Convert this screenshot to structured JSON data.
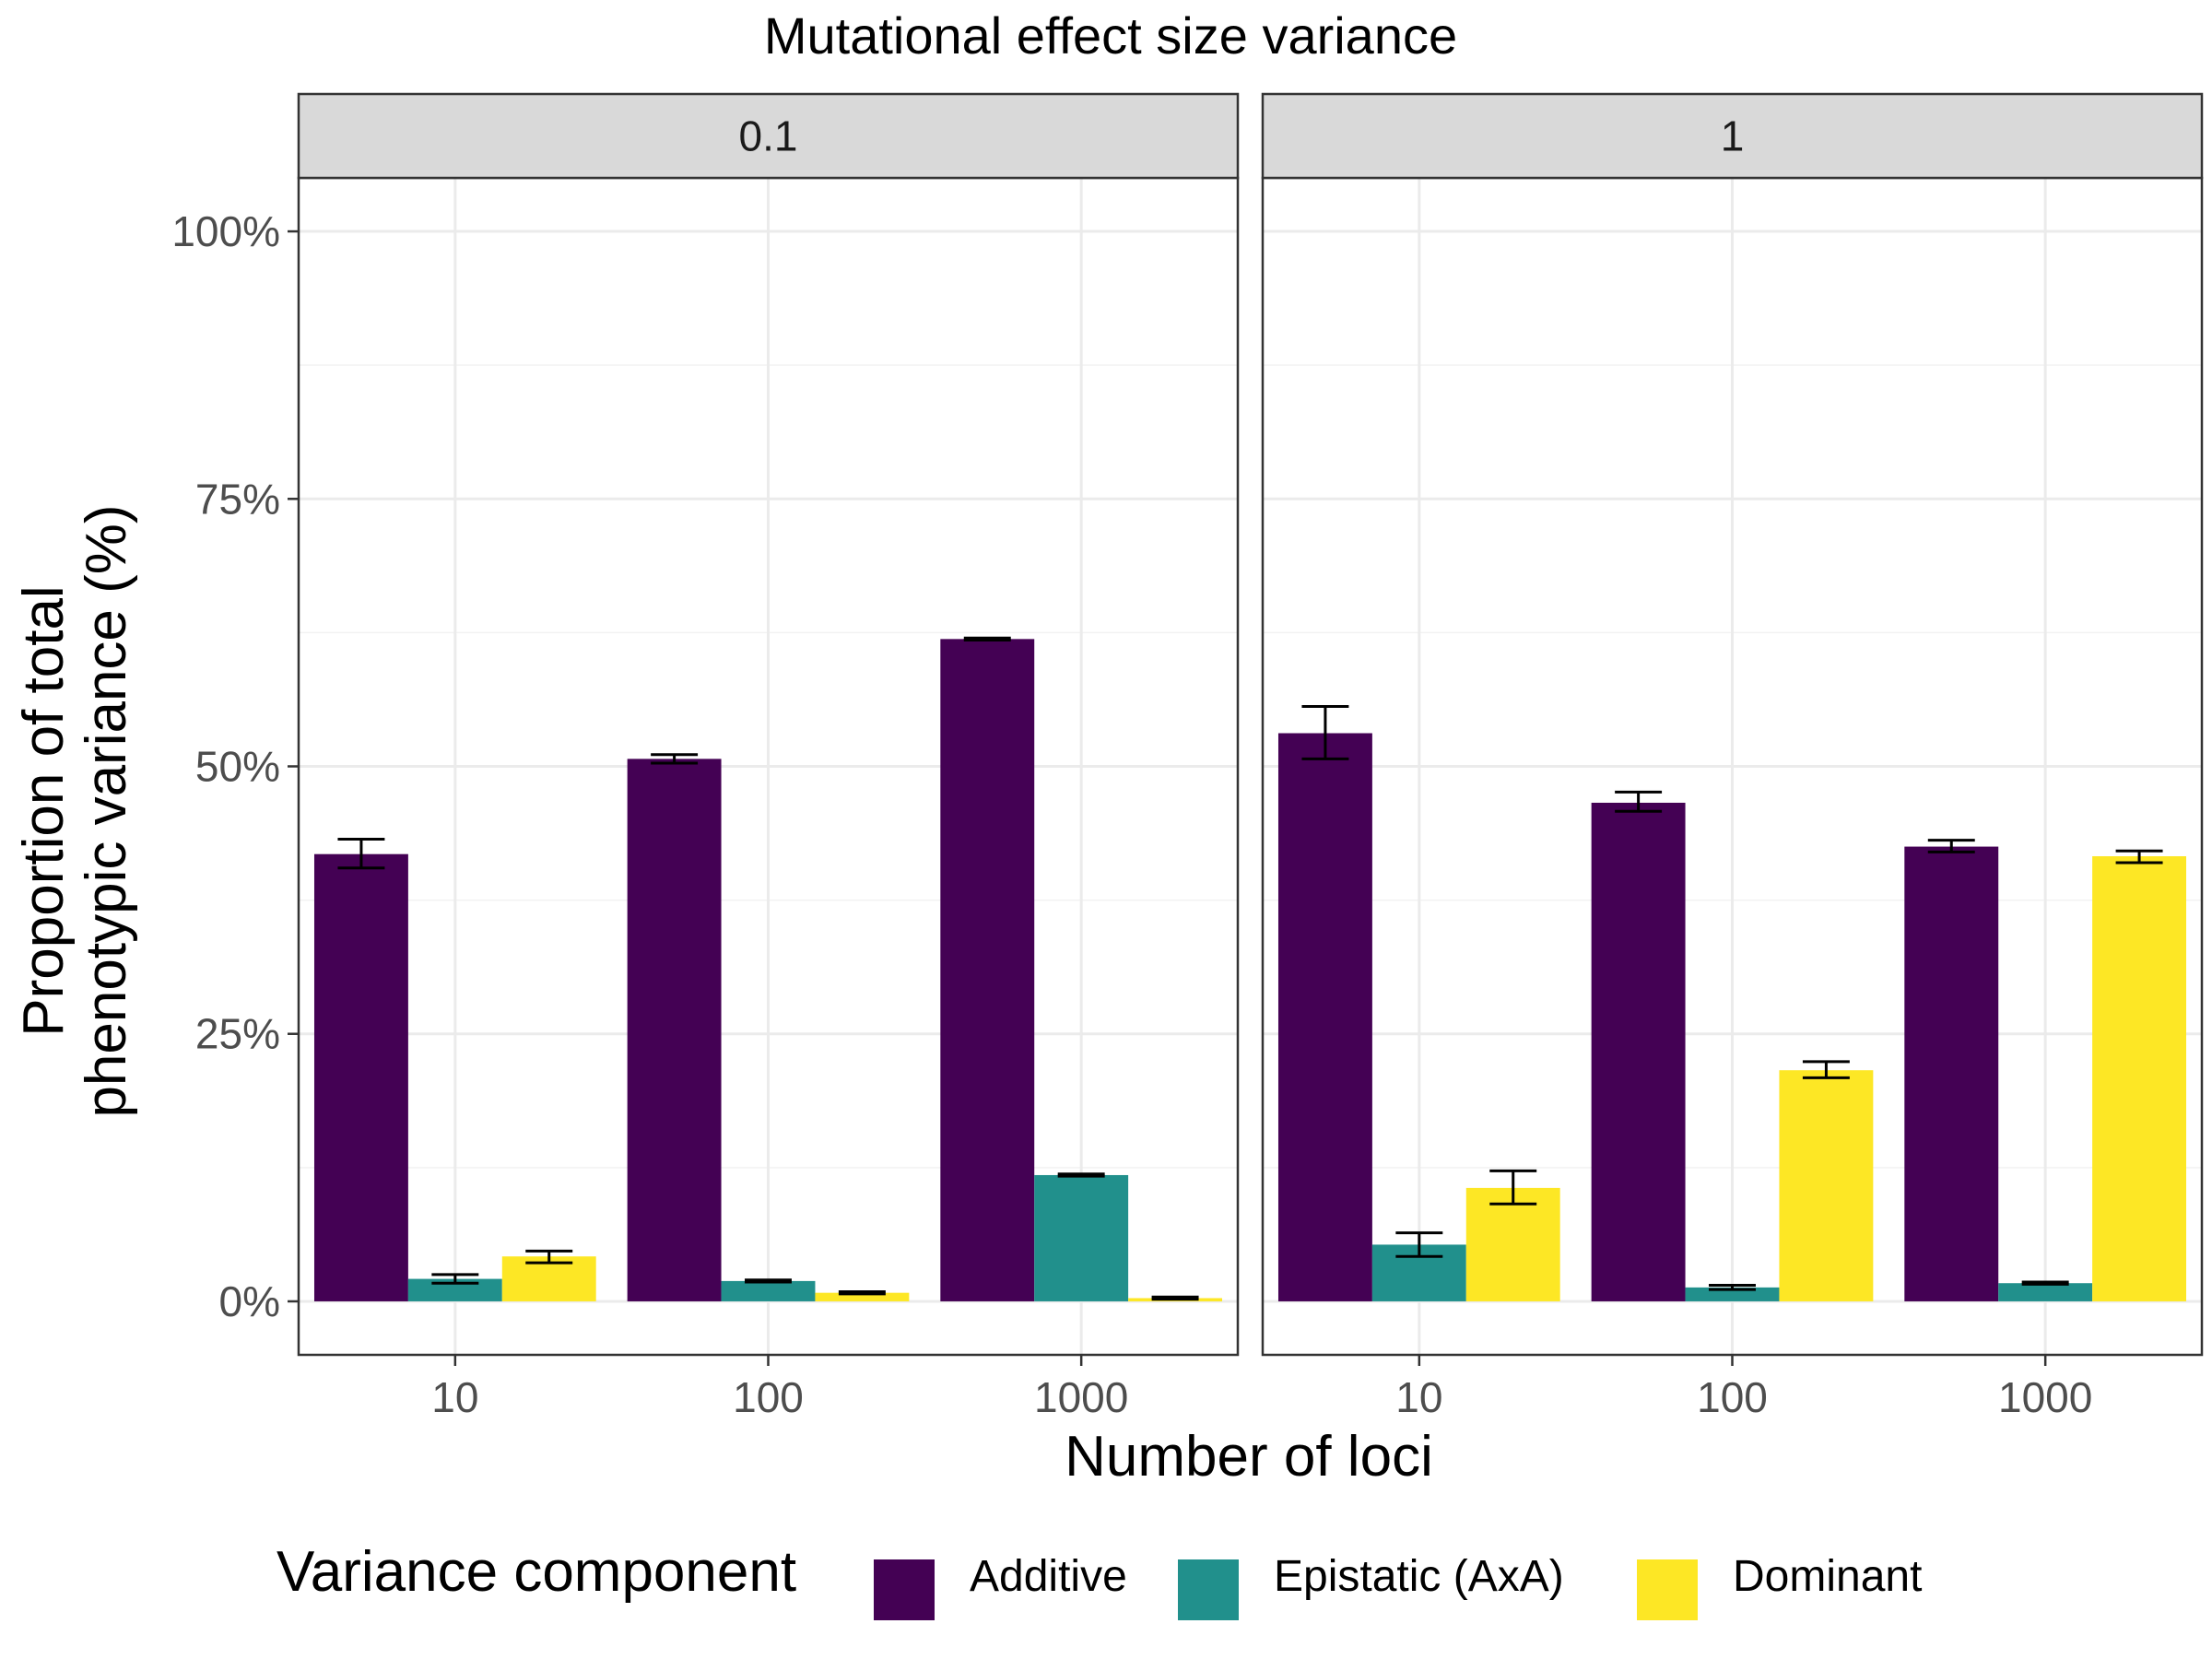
{
  "chart_data": {
    "type": "bar",
    "title": "Mutational effect size variance",
    "xlabel": "Number of loci",
    "ylabel_lines": [
      "Proportion of total",
      "phenotypic variance (%)"
    ],
    "ylim": [
      -0.05,
      1.05
    ],
    "y_ticks": [
      {
        "value": 0,
        "label": "0%"
      },
      {
        "value": 0.25,
        "label": "25%"
      },
      {
        "value": 0.5,
        "label": "50%"
      },
      {
        "value": 0.75,
        "label": "75%"
      },
      {
        "value": 1.0,
        "label": "100%"
      }
    ],
    "y_minor_ticks": [
      0.125,
      0.375,
      0.625,
      0.875
    ],
    "grid": true,
    "categories": [
      "10",
      "100",
      "1000"
    ],
    "legend": {
      "title": "Variance component",
      "position": "bottom",
      "entries": [
        {
          "name": "Additive",
          "color": "#440154"
        },
        {
          "name": "Epistatic (AxA)",
          "color": "#21908C"
        },
        {
          "name": "Dominant",
          "color": "#FDE725"
        }
      ]
    },
    "panels": [
      {
        "strip": "0.1",
        "series": [
          {
            "name": "Additive",
            "color": "#440154",
            "values": [
              0.418,
              0.507,
              0.619
            ],
            "err_lo": [
              0.405,
              0.503,
              0.618
            ],
            "err_hi": [
              0.432,
              0.511,
              0.62
            ]
          },
          {
            "name": "Epistatic (AxA)",
            "color": "#21908C",
            "values": [
              0.021,
              0.019,
              0.118
            ],
            "err_lo": [
              0.017,
              0.018,
              0.117
            ],
            "err_hi": [
              0.025,
              0.02,
              0.119
            ]
          },
          {
            "name": "Dominant",
            "color": "#FDE725",
            "values": [
              0.042,
              0.008,
              0.003
            ],
            "err_lo": [
              0.036,
              0.007,
              0.002
            ],
            "err_hi": [
              0.047,
              0.009,
              0.004
            ]
          }
        ]
      },
      {
        "strip": "1",
        "series": [
          {
            "name": "Additive",
            "color": "#440154",
            "values": [
              0.531,
              0.466,
              0.425
            ],
            "err_lo": [
              0.507,
              0.458,
              0.42
            ],
            "err_hi": [
              0.556,
              0.476,
              0.431
            ]
          },
          {
            "name": "Epistatic (AxA)",
            "color": "#21908C",
            "values": [
              0.053,
              0.013,
              0.017
            ],
            "err_lo": [
              0.042,
              0.011,
              0.016
            ],
            "err_hi": [
              0.064,
              0.015,
              0.018
            ]
          },
          {
            "name": "Dominant",
            "color": "#FDE725",
            "values": [
              0.106,
              0.216,
              0.416
            ],
            "err_lo": [
              0.091,
              0.209,
              0.41
            ],
            "err_hi": [
              0.122,
              0.224,
              0.421
            ]
          }
        ]
      }
    ]
  }
}
